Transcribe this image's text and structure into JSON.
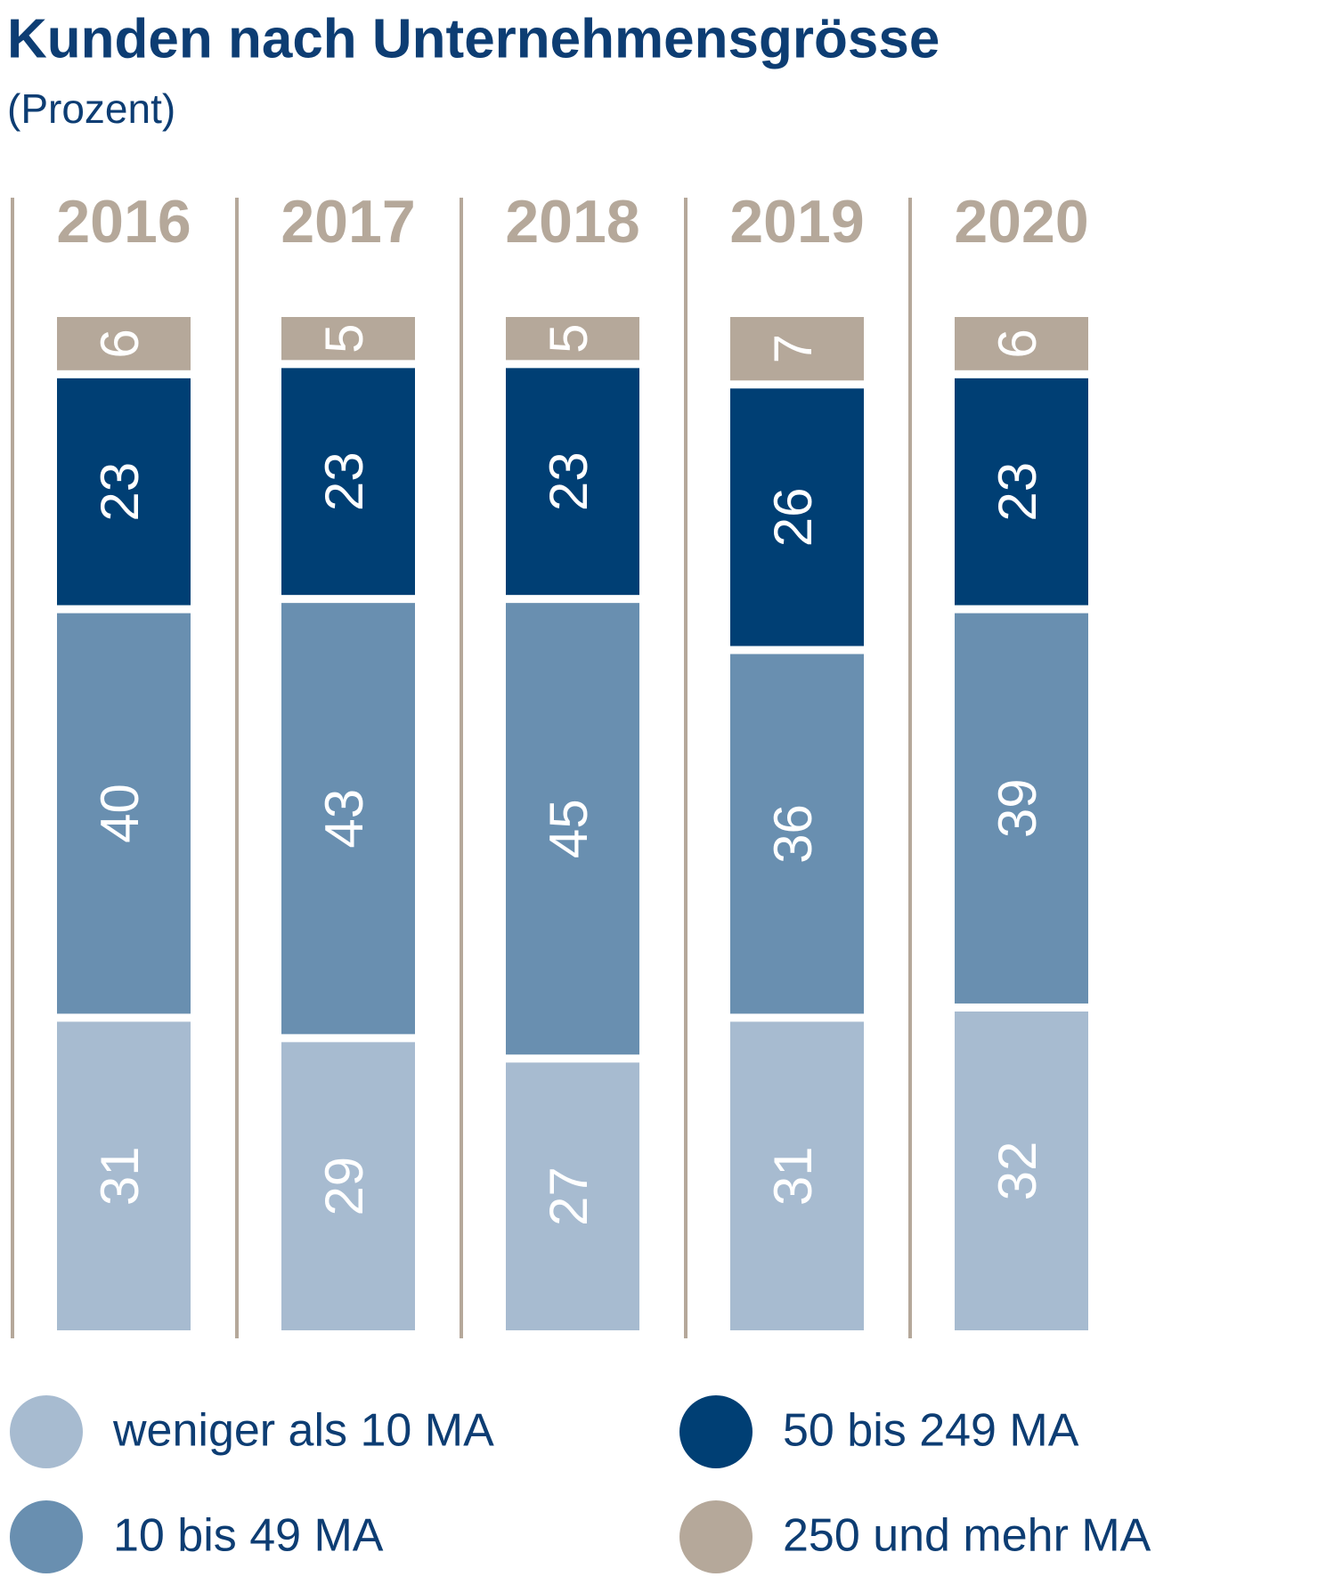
{
  "chart_data": {
    "type": "stacked-bar",
    "title": "Kunden nach Unternehmensgrösse",
    "subtitle": "(Prozent)",
    "categories": [
      "2016",
      "2017",
      "2018",
      "2019",
      "2020"
    ],
    "series": [
      {
        "name": "weniger als 10 MA",
        "color": "#a7bbd0",
        "values": [
          31,
          29,
          27,
          31,
          32
        ]
      },
      {
        "name": "10 bis 49 MA",
        "color": "#698fb0",
        "values": [
          40,
          43,
          45,
          36,
          39
        ]
      },
      {
        "name": "50 bis 249 MA",
        "color": "#003f74",
        "values": [
          23,
          23,
          23,
          26,
          23
        ]
      },
      {
        "name": "250 und mehr MA",
        "color": "#b5a89a",
        "values": [
          6,
          5,
          5,
          7,
          6
        ]
      }
    ],
    "separator_color": "#b5a89a",
    "label_color": "#ffffff"
  }
}
